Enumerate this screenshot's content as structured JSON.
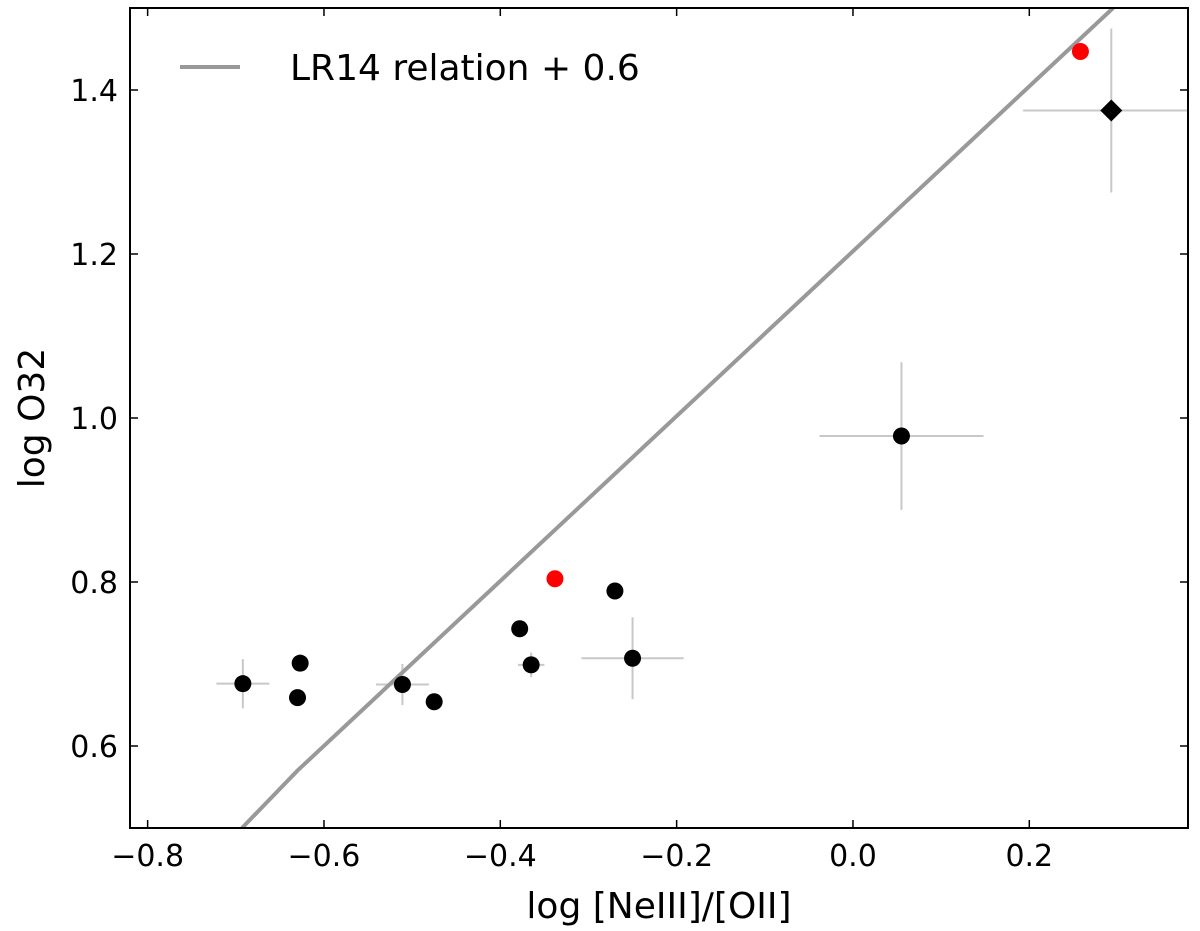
{
  "chart_data": {
    "type": "scatter",
    "title": "",
    "xlabel": "log [NeIII]/[OII]",
    "ylabel": "log O32",
    "xlim": [
      -0.82,
      0.38
    ],
    "ylim": [
      0.5,
      1.5
    ],
    "x_ticks": [
      -0.8,
      -0.6,
      -0.4,
      -0.2,
      0.0,
      0.2
    ],
    "x_tick_labels": [
      "−0.8",
      "−0.6",
      "−0.4",
      "−0.2",
      "0.0",
      "0.2"
    ],
    "y_ticks": [
      0.6,
      0.8,
      1.0,
      1.2,
      1.4
    ],
    "y_tick_labels": [
      "0.6",
      "0.8",
      "1.0",
      "1.2",
      "1.4"
    ],
    "grid": false,
    "legend": {
      "position": "top-left",
      "entries": [
        {
          "label": "LR14 relation + 0.6",
          "color": "#999999",
          "marker": "line"
        }
      ]
    },
    "colors": {
      "line": "#999999",
      "errorbar": "#c8c8c8",
      "point": "#000000",
      "highlight": "#ff0000"
    },
    "line": {
      "name": "LR14 relation + 0.6",
      "x": [
        -0.693,
        -0.63,
        0.295
      ],
      "y": [
        0.5,
        0.57,
        1.5
      ]
    },
    "series": [
      {
        "name": "black circles",
        "marker": "circle",
        "color": "#000000",
        "points": [
          {
            "x": -0.692,
            "y": 0.676,
            "xerr": 0.03,
            "yerr": 0.03
          },
          {
            "x": -0.63,
            "y": 0.659
          },
          {
            "x": -0.627,
            "y": 0.701
          },
          {
            "x": -0.511,
            "y": 0.675,
            "xerr": 0.03,
            "yerr": 0.025
          },
          {
            "x": -0.475,
            "y": 0.654
          },
          {
            "x": -0.378,
            "y": 0.743
          },
          {
            "x": -0.365,
            "y": 0.699,
            "xerr": 0.015,
            "yerr": 0.015
          },
          {
            "x": -0.27,
            "y": 0.789
          },
          {
            "x": -0.25,
            "y": 0.707,
            "xerr": 0.058,
            "yerr": 0.05
          },
          {
            "x": 0.055,
            "y": 0.978,
            "xerr": 0.093,
            "yerr": 0.09
          }
        ]
      },
      {
        "name": "red circles",
        "marker": "circle",
        "color": "#ff0000",
        "points": [
          {
            "x": -0.338,
            "y": 0.804
          },
          {
            "x": 0.258,
            "y": 1.447
          }
        ]
      },
      {
        "name": "black diamond",
        "marker": "diamond",
        "color": "#000000",
        "points": [
          {
            "x": 0.293,
            "y": 1.375,
            "xerr": 0.1,
            "yerr": 0.1
          }
        ]
      }
    ]
  }
}
